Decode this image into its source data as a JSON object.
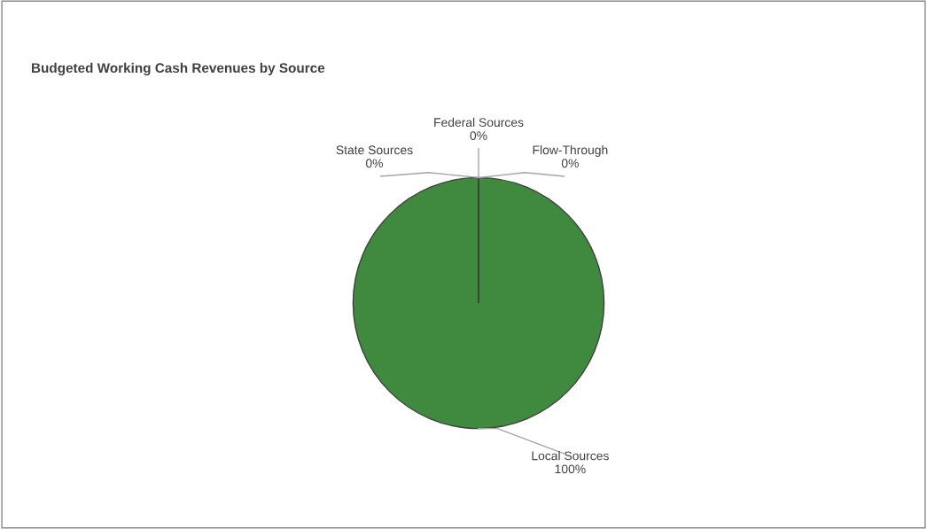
{
  "chart_data": {
    "type": "pie",
    "title": "Budgeted Working Cash Revenues by Source",
    "categories": [
      "Local Sources",
      "State Sources",
      "Federal Sources",
      "Flow-Through"
    ],
    "values": [
      100,
      0,
      0,
      0
    ],
    "colors": [
      "#3f8a3f",
      "#a5a5a5",
      "#4472c4",
      "#ffc000"
    ],
    "value_labels": [
      "100%",
      "0%",
      "0%",
      "0%"
    ],
    "legend": false
  }
}
